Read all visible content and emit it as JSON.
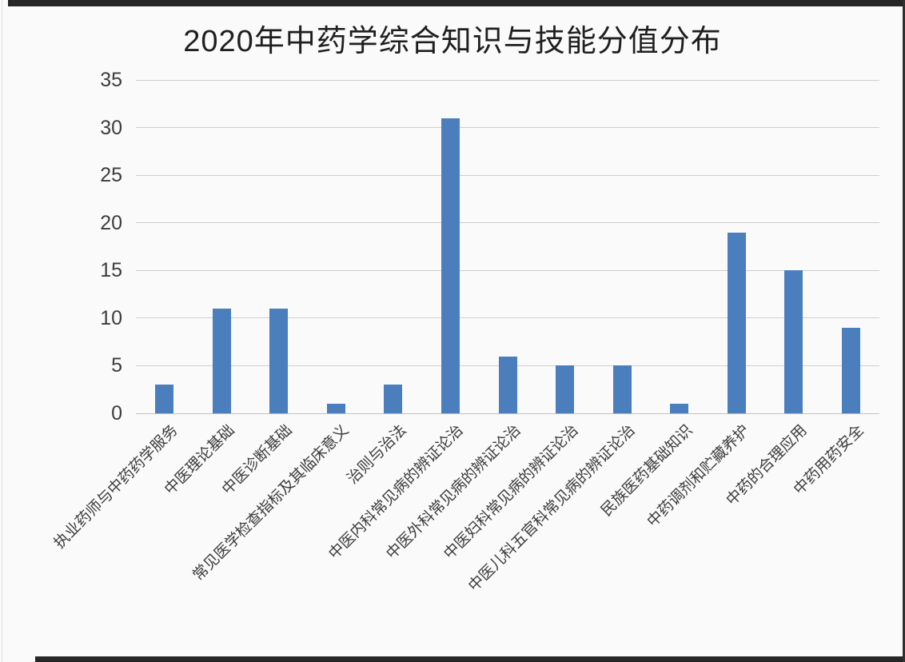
{
  "page": {
    "background": "#fbfafa",
    "photo_edge_color": "#262626"
  },
  "chart_data": {
    "type": "bar",
    "title": "2020年中药学综合知识与技能分值分布",
    "categories": [
      "执业药师与中药药学服务",
      "中医理论基础",
      "中医诊断基础",
      "常见医学检查指标及其临床意义",
      "治则与治法",
      "中医内科常见病的辨证论治",
      "中医外科常见病的辨证论治",
      "中医妇科常见病的辨证论治",
      "中医儿科五官科常见病的辨证论治",
      "民族医药基础知识",
      "中药调剂和贮藏养护",
      "中药的合理应用",
      "中药用药安全"
    ],
    "values": [
      3,
      11,
      11,
      1,
      3,
      31,
      6,
      5,
      5,
      1,
      19,
      15,
      9
    ],
    "xlabel": "",
    "ylabel": "",
    "ylim": [
      0,
      35
    ],
    "yticks": [
      0,
      5,
      10,
      15,
      20,
      25,
      30,
      35
    ],
    "grid": true,
    "legend_position": "none",
    "x_label_rotation_deg": 45,
    "bar_color": "#4a7ebd",
    "gridline_color": "#cecece",
    "axis_line_color": "#c2c2c2",
    "label_color": "#3d3d3d",
    "title_color": "#1f1f1f"
  }
}
